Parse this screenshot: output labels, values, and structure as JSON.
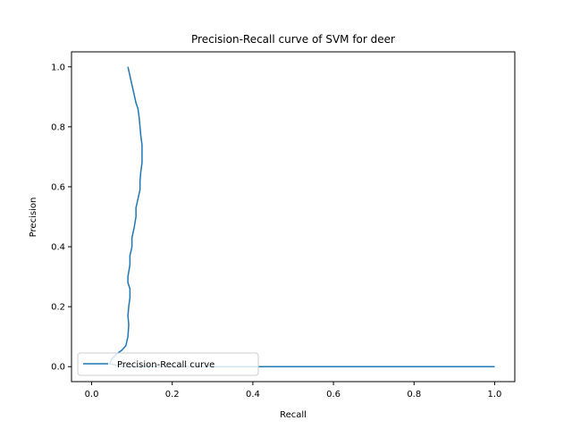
{
  "chart_data": {
    "type": "line",
    "title": "Precision-Recall curve of SVM for deer",
    "xlabel": "Recall",
    "ylabel": "Precision",
    "xlim": [
      -0.05,
      1.05
    ],
    "ylim": [
      -0.05,
      1.05
    ],
    "grid": false,
    "legend_position": "lower-left",
    "xticks": [
      0.0,
      0.2,
      0.4,
      0.6,
      0.8,
      1.0
    ],
    "yticks": [
      0.0,
      0.2,
      0.4,
      0.6,
      0.8,
      1.0
    ],
    "xtick_labels": [
      "0.0",
      "0.2",
      "0.4",
      "0.6",
      "0.8",
      "1.0"
    ],
    "ytick_labels": [
      "0.0",
      "0.2",
      "0.4",
      "0.6",
      "0.8",
      "1.0"
    ],
    "series": [
      {
        "name": "Precision-Recall curve",
        "color": "#1f77b4",
        "x": [
          1.0,
          0.95,
          0.8,
          0.6,
          0.4,
          0.2,
          0.1,
          0.08,
          0.06,
          0.045,
          0.05,
          0.06,
          0.075,
          0.085,
          0.09,
          0.092,
          0.09,
          0.092,
          0.095,
          0.095,
          0.09,
          0.09,
          0.095,
          0.095,
          0.1,
          0.1,
          0.105,
          0.11,
          0.11,
          0.115,
          0.12,
          0.12,
          0.122,
          0.125,
          0.125,
          0.125,
          0.122,
          0.12,
          0.118,
          0.115,
          0.11,
          0.105,
          0.1,
          0.095,
          0.09
        ],
        "y": [
          0.0,
          0.0,
          0.0,
          0.0,
          0.0,
          0.0,
          0.0,
          0.0,
          0.005,
          0.01,
          0.025,
          0.04,
          0.055,
          0.07,
          0.1,
          0.14,
          0.17,
          0.2,
          0.23,
          0.26,
          0.28,
          0.3,
          0.34,
          0.37,
          0.4,
          0.43,
          0.46,
          0.5,
          0.53,
          0.56,
          0.59,
          0.62,
          0.65,
          0.68,
          0.71,
          0.74,
          0.77,
          0.8,
          0.83,
          0.86,
          0.88,
          0.91,
          0.94,
          0.97,
          1.0
        ]
      }
    ]
  }
}
